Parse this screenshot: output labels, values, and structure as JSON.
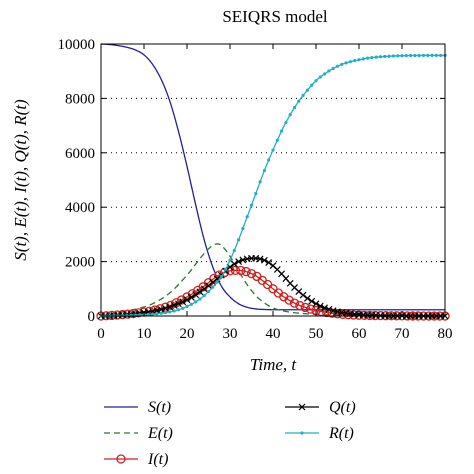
{
  "chart_data": {
    "type": "line",
    "title": "SEIQRS model",
    "xlabel": "Time, t",
    "ylabel": "S(t), E(t), I(t), Q(t), R(t)",
    "xlim": [
      0,
      80
    ],
    "ylim": [
      0,
      10000
    ],
    "xticks": [
      "0",
      "10",
      "20",
      "30",
      "40",
      "50",
      "60",
      "70",
      "80"
    ],
    "yticks": [
      "0",
      "2000",
      "4000",
      "6000",
      "8000",
      "10000"
    ],
    "grid": "horizontal dotted",
    "legend_position": "below",
    "series": [
      {
        "name": "S(t)",
        "color": "#2020a0",
        "style": "solid",
        "marker": "none",
        "x": [
          0,
          2,
          4,
          6,
          8,
          10,
          12,
          14,
          16,
          18,
          20,
          22,
          24,
          26,
          28,
          30,
          32,
          34,
          36,
          38,
          40,
          45,
          50,
          60,
          70,
          80
        ],
        "y": [
          10000,
          9980,
          9940,
          9880,
          9780,
          9600,
          9250,
          8700,
          7900,
          6800,
          5500,
          4100,
          2800,
          1800,
          1100,
          700,
          450,
          320,
          260,
          240,
          230,
          230,
          230,
          230,
          230,
          230
        ]
      },
      {
        "name": "E(t)",
        "color": "#2a7a2a",
        "style": "dashed",
        "marker": "none",
        "x": [
          0,
          4,
          8,
          12,
          16,
          20,
          22,
          24,
          26,
          27,
          28,
          30,
          32,
          34,
          36,
          38,
          40,
          42,
          45,
          50,
          55,
          60,
          70,
          80
        ],
        "y": [
          0,
          120,
          250,
          450,
          850,
          1500,
          1900,
          2300,
          2600,
          2650,
          2600,
          2200,
          1650,
          1150,
          750,
          480,
          300,
          200,
          120,
          60,
          30,
          15,
          5,
          0
        ]
      },
      {
        "name": "I(t)",
        "color": "#d02020",
        "style": "solid",
        "marker": "circle",
        "x": [
          0,
          4,
          8,
          12,
          16,
          20,
          24,
          26,
          28,
          30,
          32,
          33,
          34,
          36,
          38,
          40,
          42,
          44,
          46,
          48,
          50,
          55,
          60,
          70,
          80
        ],
        "y": [
          0,
          40,
          100,
          200,
          380,
          700,
          1100,
          1350,
          1550,
          1660,
          1680,
          1660,
          1620,
          1480,
          1250,
          1000,
          760,
          560,
          400,
          290,
          200,
          80,
          30,
          5,
          0
        ]
      },
      {
        "name": "Q(t)",
        "color": "#000000",
        "style": "solid",
        "marker": "cross",
        "x": [
          0,
          4,
          8,
          12,
          16,
          20,
          24,
          28,
          30,
          32,
          34,
          36,
          38,
          40,
          42,
          44,
          46,
          48,
          50,
          52,
          55,
          60,
          65,
          70,
          80
        ],
        "y": [
          0,
          30,
          80,
          170,
          330,
          600,
          1000,
          1500,
          1800,
          2000,
          2100,
          2120,
          2050,
          1850,
          1550,
          1200,
          900,
          650,
          450,
          300,
          160,
          50,
          15,
          5,
          0
        ]
      },
      {
        "name": "R(t)",
        "color": "#20b0c0",
        "style": "solid",
        "marker": "dot",
        "x": [
          0,
          10,
          16,
          20,
          24,
          28,
          30,
          32,
          34,
          36,
          38,
          40,
          42,
          44,
          46,
          48,
          50,
          52,
          54,
          56,
          58,
          60,
          62,
          65,
          70,
          75,
          80
        ],
        "y": [
          0,
          50,
          150,
          350,
          750,
          1450,
          2050,
          2800,
          3650,
          4500,
          5350,
          6100,
          6800,
          7400,
          7900,
          8300,
          8650,
          8900,
          9100,
          9250,
          9350,
          9420,
          9480,
          9530,
          9570,
          9580,
          9580
        ]
      }
    ]
  }
}
